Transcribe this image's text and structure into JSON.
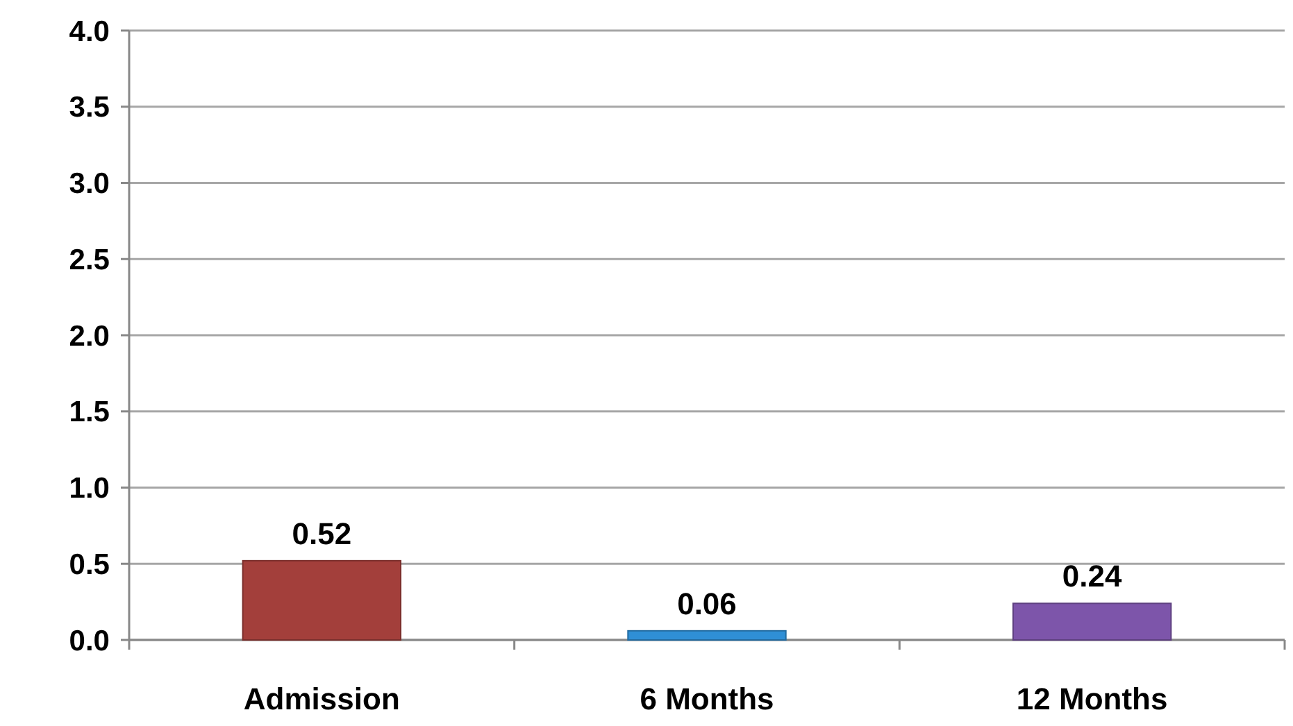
{
  "chart_data": {
    "type": "bar",
    "categories": [
      "Admission",
      "6 Months",
      "12 Months"
    ],
    "values": [
      0.52,
      0.06,
      0.24
    ],
    "colors": [
      "#a33f3b",
      "#2f8fd6",
      "#7d55aa"
    ],
    "ylim": [
      0,
      4
    ],
    "yticks": [
      {
        "value": 0,
        "label": "0.0"
      },
      {
        "value": 0.5,
        "label": "0.5"
      },
      {
        "value": 1,
        "label": "1.0"
      },
      {
        "value": 1.5,
        "label": "1.5"
      },
      {
        "value": 2,
        "label": "2.0"
      },
      {
        "value": 2.5,
        "label": "2.5"
      },
      {
        "value": 3,
        "label": "3.0"
      },
      {
        "value": 3.5,
        "label": "3.5"
      },
      {
        "value": 4,
        "label": "4.0"
      }
    ],
    "grid": "y",
    "data_labels": true
  }
}
